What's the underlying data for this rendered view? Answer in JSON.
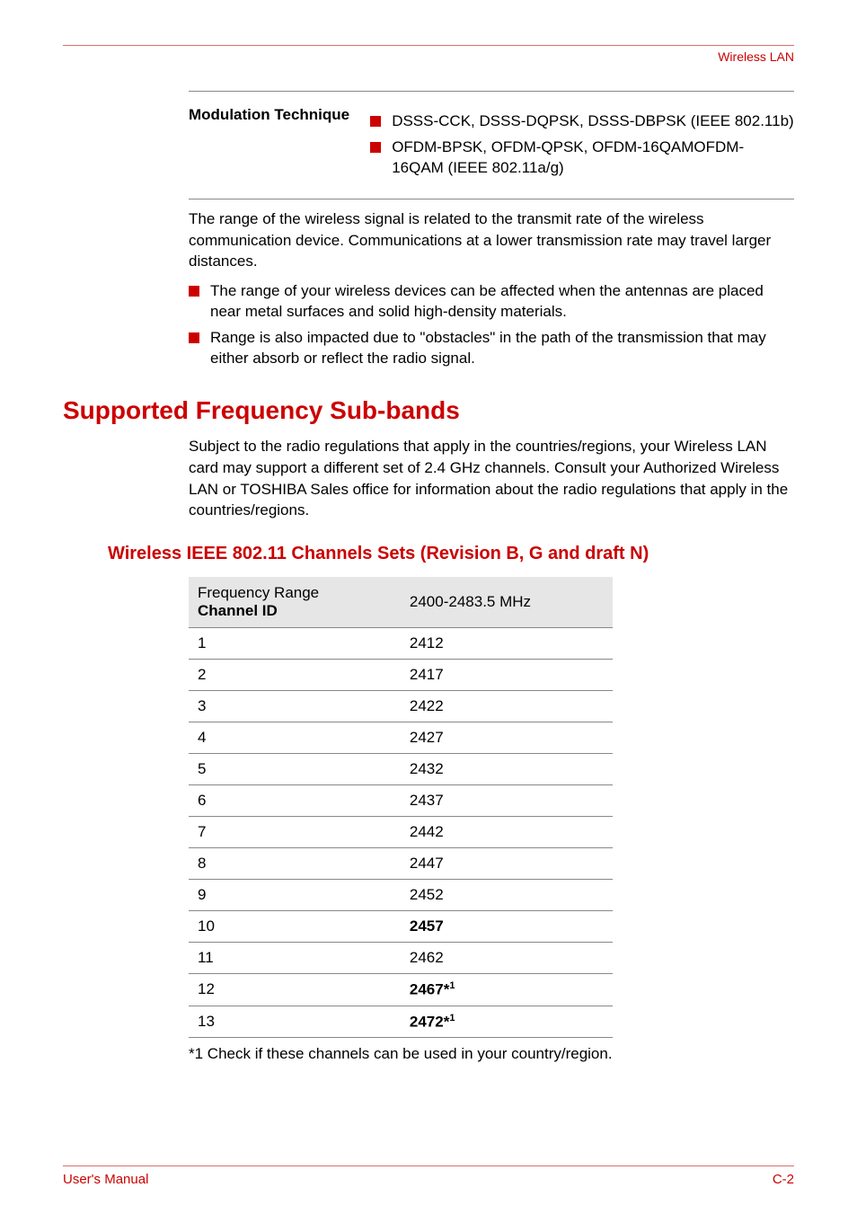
{
  "header": {
    "title": "Wireless LAN"
  },
  "spec": {
    "label": "Modulation Technique",
    "items": [
      "DSSS-CCK, DSSS-DQPSK, DSSS-DBPSK (IEEE 802.11b)",
      "OFDM-BPSK, OFDM-QPSK, OFDM-16QAMOFDM-16QAM (IEEE 802.11a/g)"
    ]
  },
  "range_paragraph": "The range of the wireless signal is related to the transmit rate of the wireless communication device. Communications at a lower transmission rate may travel larger distances.",
  "range_bullets": [
    "The range of your wireless devices can be affected when the antennas are placed near metal surfaces and solid high-density materials.",
    "Range is also impacted due to \"obstacles\" in the path of the transmission that may either absorb or reflect the radio signal."
  ],
  "section": {
    "title": "Supported Frequency Sub-bands",
    "body": "Subject to the radio regulations that apply in the countries/regions, your Wireless LAN card may support a different set of 2.4 GHz channels. Consult your Authorized Wireless LAN or TOSHIBA Sales office for information about the radio regulations that apply in the countries/regions."
  },
  "subsection": {
    "title": "Wireless IEEE 802.11 Channels Sets (Revision B, G and draft N)",
    "table": {
      "header_line1": "Frequency Range",
      "header_line2": "Channel ID",
      "header_col2": "2400-2483.5 MHz",
      "header_bg": "#e6e6e6",
      "border_color": "#888888",
      "rows": [
        {
          "id": "1",
          "val": "2412",
          "bold": false,
          "note": false
        },
        {
          "id": "2",
          "val": "2417",
          "bold": false,
          "note": false
        },
        {
          "id": "3",
          "val": "2422",
          "bold": false,
          "note": false
        },
        {
          "id": "4",
          "val": "2427",
          "bold": false,
          "note": false
        },
        {
          "id": "5",
          "val": "2432",
          "bold": false,
          "note": false
        },
        {
          "id": "6",
          "val": "2437",
          "bold": false,
          "note": false
        },
        {
          "id": "7",
          "val": "2442",
          "bold": false,
          "note": false
        },
        {
          "id": "8",
          "val": "2447",
          "bold": false,
          "note": false
        },
        {
          "id": "9",
          "val": "2452",
          "bold": false,
          "note": false
        },
        {
          "id": "10",
          "val": "2457",
          "bold": true,
          "note": false
        },
        {
          "id": "11",
          "val": "2462",
          "bold": false,
          "note": false
        },
        {
          "id": "12",
          "val": "2467",
          "bold": true,
          "note": true
        },
        {
          "id": "13",
          "val": "2472",
          "bold": true,
          "note": true
        }
      ],
      "note_marker": "*",
      "note_sup": "1"
    },
    "footnote": "*1 Check if these channels can be used in your country/region."
  },
  "footer": {
    "left": "User's Manual",
    "right": "C-2"
  },
  "colors": {
    "accent": "#cc0000",
    "rule": "#d87070",
    "text": "#000000"
  },
  "fonts": {
    "body_size_pt": 13,
    "h1_size_pt": 21,
    "h2_size_pt": 15
  }
}
